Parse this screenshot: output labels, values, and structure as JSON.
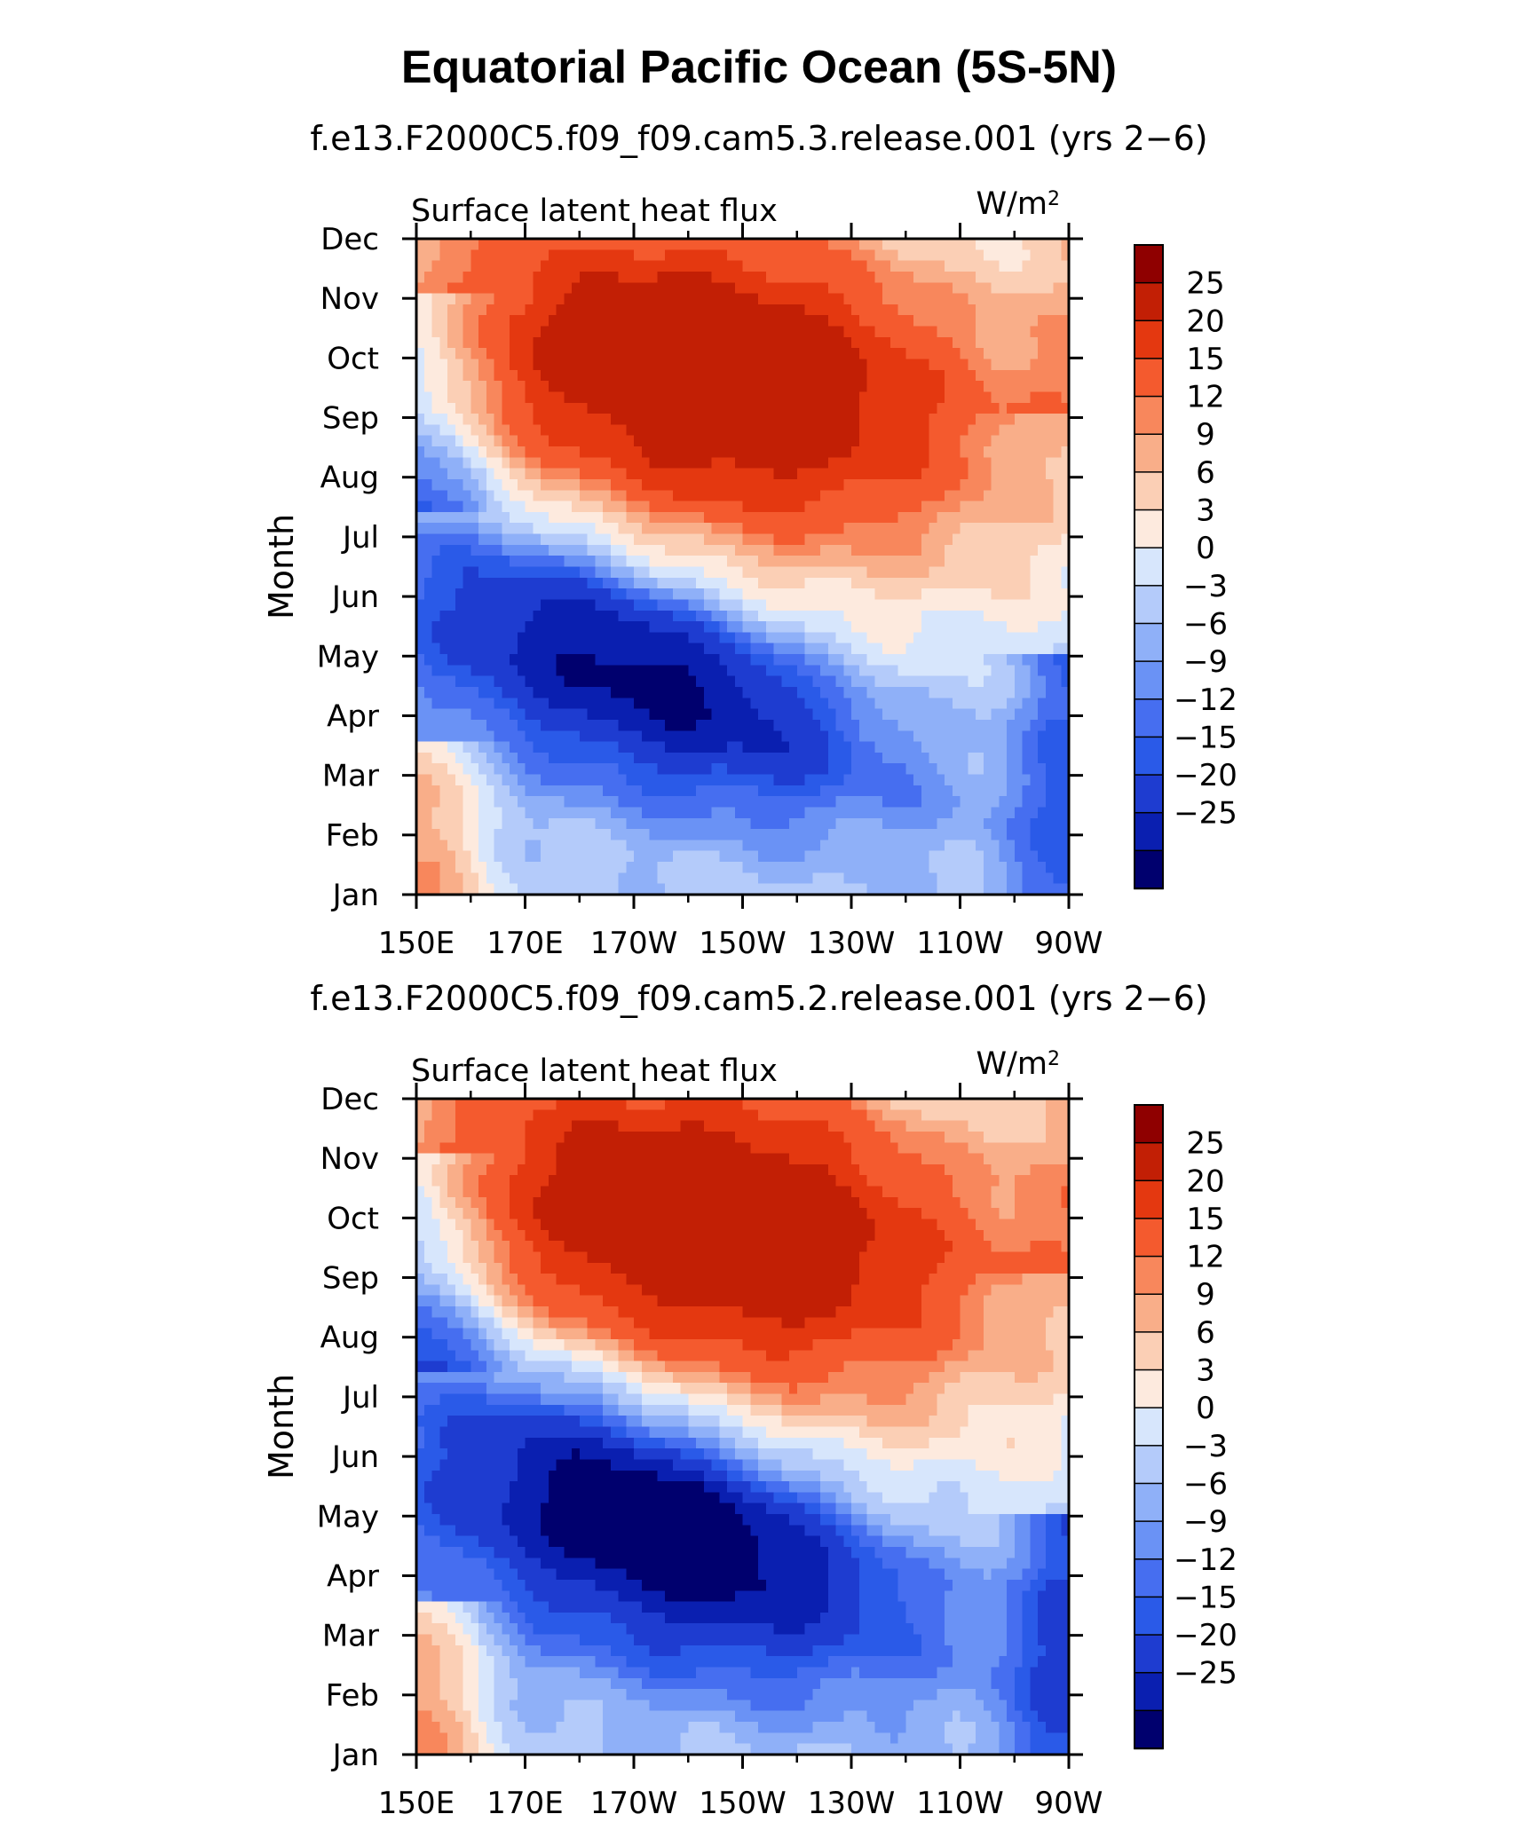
{
  "figure": {
    "title": "Equatorial Pacific Ocean (5S-5N)"
  },
  "colors": {
    "scale": [
      "#00006e",
      "#0a1fb0",
      "#1e3cd0",
      "#2a5ae8",
      "#466ef0",
      "#6a92f5",
      "#8fb0f8",
      "#b4cbfa",
      "#d7e6fc",
      "#fdeade",
      "#fbcfb5",
      "#f9ae89",
      "#f8875c",
      "#f45a2e",
      "#e43810",
      "#c21f05",
      "#8f0000"
    ]
  },
  "chart_data": [
    {
      "type": "heatmap",
      "title": "f.e13.F2000C5.f09_f09.cam5.3.release.001 (yrs 2−6)",
      "variable": "Surface latent heat flux",
      "units": "W/m",
      "units_power": "2",
      "ylabel": "Month",
      "xlabel": "",
      "x_ticks": [
        "150E",
        "170E",
        "170W",
        "150W",
        "130W",
        "110W",
        "90W"
      ],
      "y_ticks": [
        "Jan",
        "Feb",
        "Mar",
        "Apr",
        "May",
        "Jun",
        "Jul",
        "Aug",
        "Sep",
        "Oct",
        "Nov",
        "Dec"
      ],
      "xlim": [
        150,
        270
      ],
      "colorbar_levels": [
        25,
        20,
        15,
        12,
        9,
        6,
        3,
        0,
        "−3",
        "−6",
        "−9",
        "−12",
        "−15",
        "−20",
        "−25"
      ],
      "pattern": {
        "diag_intercept": 7.0,
        "diag_slope": 0.6,
        "neg_amp": 27,
        "neg_center": 4.0,
        "neg_width": 2.4,
        "pos_amp": 28,
        "pos_center": 8.6,
        "pos_width": 2.8,
        "west_amp": 10,
        "east_amp": 6
      }
    },
    {
      "type": "heatmap",
      "title": "f.e13.F2000C5.f09_f09.cam5.2.release.001 (yrs 2−6)",
      "variable": "Surface latent heat flux",
      "units": "W/m",
      "units_power": "2",
      "ylabel": "Month",
      "xlabel": "",
      "x_ticks": [
        "150E",
        "170E",
        "170W",
        "150W",
        "130W",
        "110W",
        "90W"
      ],
      "y_ticks": [
        "Jan",
        "Feb",
        "Mar",
        "Apr",
        "May",
        "Jun",
        "Jul",
        "Aug",
        "Sep",
        "Oct",
        "Nov",
        "Dec"
      ],
      "xlim": [
        150,
        270
      ],
      "colorbar_levels": [
        25,
        20,
        15,
        12,
        9,
        6,
        3,
        0,
        "−3",
        "−6",
        "−9",
        "−12",
        "−15",
        "−20",
        "−25"
      ],
      "pattern": {
        "diag_intercept": 7.4,
        "diag_slope": 0.55,
        "neg_amp": 28,
        "neg_center": 4.0,
        "neg_width": 2.6,
        "pos_amp": 28,
        "pos_center": 8.8,
        "pos_width": 2.8,
        "west_amp": 11,
        "east_amp": 7
      }
    }
  ]
}
